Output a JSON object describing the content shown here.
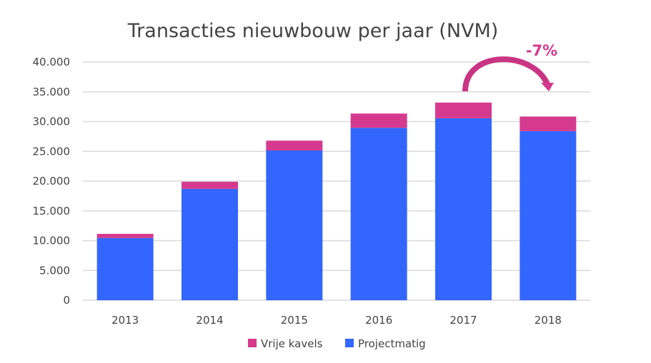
{
  "chart_data": {
    "type": "bar",
    "stacked": true,
    "title": "Transacties nieuwbouw per jaar (NVM)",
    "categories": [
      "2013",
      "2014",
      "2015",
      "2016",
      "2017",
      "2018"
    ],
    "series": [
      {
        "name": "Projectmatig",
        "color": "#3366ff",
        "values": [
          10450,
          18700,
          25150,
          28950,
          30550,
          28400
        ]
      },
      {
        "name": "Vrije kavels",
        "color": "#d63a8e",
        "values": [
          700,
          1200,
          1650,
          2400,
          2650,
          2450
        ]
      }
    ],
    "ylim": [
      0,
      40000
    ],
    "yticks": [
      0,
      5000,
      10000,
      15000,
      20000,
      25000,
      30000,
      35000,
      40000
    ],
    "ytick_labels": [
      "0",
      "5.000",
      "10.000",
      "15.000",
      "20.000",
      "25.000",
      "30.000",
      "35.000",
      "40.000"
    ],
    "grid": true,
    "legend": {
      "placement": "bottom",
      "entries": [
        "Vrije kavels",
        "Projectmatig"
      ]
    },
    "annotation": {
      "text": "-7%",
      "from": "2017",
      "to": "2018",
      "color": "#d63a8e"
    }
  }
}
